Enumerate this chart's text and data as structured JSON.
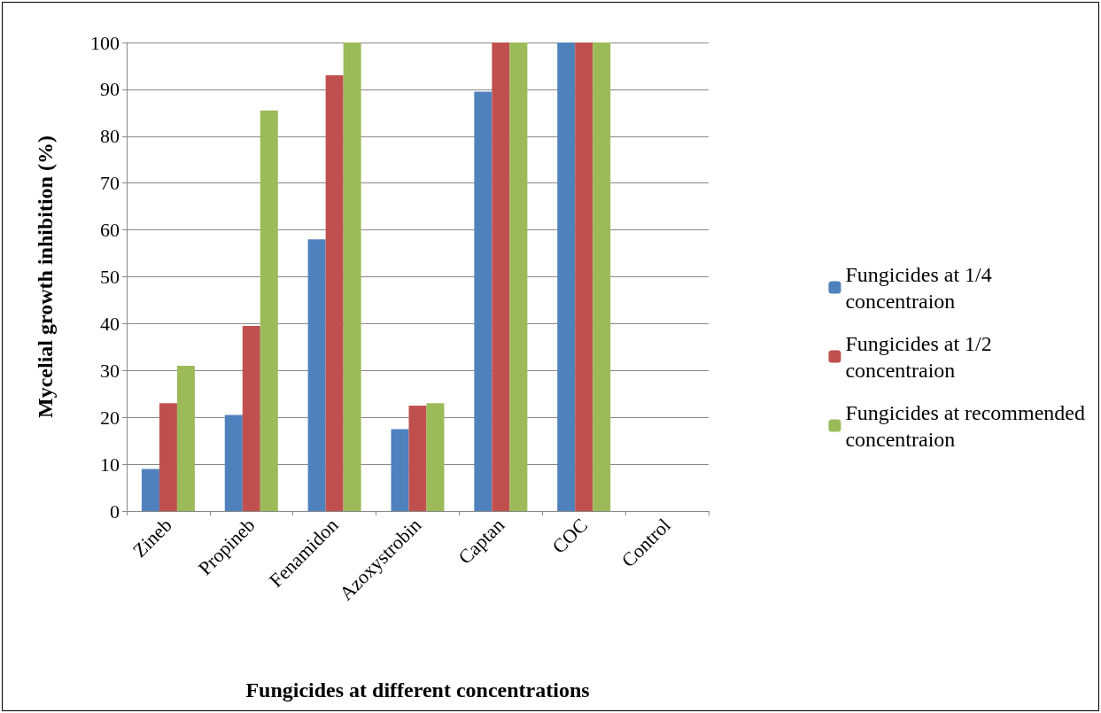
{
  "chart_data": {
    "type": "bar",
    "xlabel": "Fungicides at different concentrations",
    "ylabel": "Mycelial growth inhibition (%)",
    "categories": [
      "Zineb",
      "Propineb",
      "Fenamidon",
      "Azoxystrobin",
      "Captan",
      "COC",
      "Control"
    ],
    "series": [
      {
        "name": "Fungicides at 1/4\nconcentraion",
        "color": "#4f81bd",
        "values": [
          9,
          20.5,
          58,
          17.5,
          89.5,
          100,
          0
        ]
      },
      {
        "name": "Fungicides at 1/2\nconcentraion",
        "color": "#c0504d",
        "values": [
          23,
          39.5,
          93,
          22.5,
          100,
          100,
          0
        ]
      },
      {
        "name": "Fungicides at recommended\nconcentraion",
        "color": "#9bbb59",
        "values": [
          31,
          85.5,
          100,
          23,
          100,
          100,
          0
        ]
      }
    ],
    "ylim": [
      0,
      100
    ],
    "yticks": [
      0,
      10,
      20,
      30,
      40,
      50,
      60,
      70,
      80,
      90,
      100
    ],
    "grid": "y",
    "legend": "right"
  }
}
